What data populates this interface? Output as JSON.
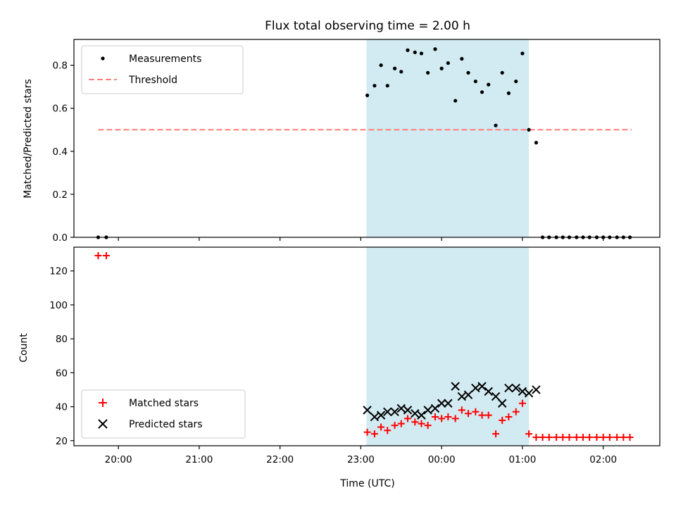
{
  "chart_data": {
    "type": "scatter",
    "title": "Flux total observing time = 2.00 h",
    "xlabel": "Time (UTC)",
    "x_ticks": [
      "20:00",
      "21:00",
      "22:00",
      "23:00",
      "00:00",
      "01:00",
      "02:00"
    ],
    "x_tick_hours": [
      20,
      21,
      22,
      23,
      24,
      25,
      26
    ],
    "xlim": [
      19.45,
      26.7
    ],
    "shaded_interval": [
      23.07,
      25.08
    ],
    "shade_color": "#add8e6",
    "top_panel": {
      "ylabel": "Matched/Predicted stars",
      "ylim": [
        0,
        0.92
      ],
      "y_ticks": [
        "0.0",
        "0.2",
        "0.4",
        "0.6",
        "0.8"
      ],
      "y_tick_values": [
        0,
        0.2,
        0.4,
        0.6,
        0.8
      ],
      "legend": {
        "position": "upper-left",
        "entries": [
          "Measurements",
          "Threshold"
        ]
      },
      "threshold": {
        "name": "Threshold",
        "y": 0.5,
        "x_range": [
          19.75,
          26.35
        ],
        "color": "#ff7f7f",
        "style": "dashed"
      },
      "measurements": {
        "name": "Measurements",
        "color": "#000000",
        "marker": "dot",
        "x": [
          19.75,
          19.85,
          23.08,
          23.17,
          23.25,
          23.33,
          23.42,
          23.5,
          23.58,
          23.67,
          23.75,
          23.83,
          23.92,
          24.0,
          24.08,
          24.17,
          24.25,
          24.33,
          24.42,
          24.5,
          24.58,
          24.67,
          24.75,
          24.83,
          24.92,
          25.0,
          25.08,
          25.17,
          25.25,
          25.33,
          25.42,
          25.5,
          25.58,
          25.67,
          25.75,
          25.83,
          25.92,
          26.0,
          26.08,
          26.17,
          26.25,
          26.33
        ],
        "y": [
          0.0,
          0.0,
          0.66,
          0.705,
          0.8,
          0.705,
          0.785,
          0.77,
          0.87,
          0.86,
          0.855,
          0.765,
          0.875,
          0.785,
          0.81,
          0.635,
          0.83,
          0.765,
          0.725,
          0.675,
          0.71,
          0.52,
          0.765,
          0.67,
          0.725,
          0.855,
          0.5,
          0.44,
          0.0,
          0.0,
          0.0,
          0.0,
          0.0,
          0.0,
          0.0,
          0.0,
          0.0,
          0.0,
          0.0,
          0.0,
          0.0,
          0.0
        ]
      }
    },
    "bottom_panel": {
      "ylabel": "Count",
      "ylim": [
        17,
        134
      ],
      "y_ticks": [
        "20",
        "40",
        "60",
        "80",
        "100",
        "120"
      ],
      "y_tick_values": [
        20,
        40,
        60,
        80,
        100,
        120
      ],
      "legend": {
        "position": "lower-left",
        "entries": [
          "Matched stars",
          "Predicted stars"
        ]
      },
      "series": [
        {
          "name": "Matched stars",
          "color": "#ff0000",
          "marker": "plus",
          "x": [
            19.75,
            19.85,
            23.08,
            23.17,
            23.25,
            23.33,
            23.42,
            23.5,
            23.58,
            23.67,
            23.75,
            23.83,
            23.92,
            24.0,
            24.08,
            24.17,
            24.25,
            24.33,
            24.42,
            24.5,
            24.58,
            24.67,
            24.75,
            24.83,
            24.92,
            25.0,
            25.08,
            25.17,
            25.25,
            25.33,
            25.42,
            25.5,
            25.58,
            25.67,
            25.75,
            25.83,
            25.92,
            26.0,
            26.08,
            26.17,
            26.25,
            26.33
          ],
          "y": [
            129,
            129,
            25,
            24,
            28,
            26,
            29,
            30,
            33,
            31,
            30,
            29,
            34,
            33,
            34,
            33,
            38,
            36,
            37,
            35,
            35,
            24,
            32,
            34,
            37,
            42,
            24,
            22,
            22,
            22,
            22,
            22,
            22,
            22,
            22,
            22,
            22,
            22,
            22,
            22,
            22,
            22
          ]
        },
        {
          "name": "Predicted stars",
          "color": "#000000",
          "marker": "x",
          "x": [
            23.08,
            23.17,
            23.25,
            23.33,
            23.42,
            23.5,
            23.58,
            23.67,
            23.75,
            23.83,
            23.92,
            24.0,
            24.08,
            24.17,
            24.25,
            24.33,
            24.42,
            24.5,
            24.58,
            24.67,
            24.75,
            24.83,
            24.92,
            25.0,
            25.08,
            25.17
          ],
          "y": [
            38,
            34,
            35,
            37,
            37,
            39,
            38,
            36,
            35,
            38,
            39,
            42,
            42,
            52,
            46,
            47,
            51,
            52,
            49,
            46,
            42,
            51,
            51,
            49,
            48,
            50
          ]
        }
      ]
    }
  }
}
